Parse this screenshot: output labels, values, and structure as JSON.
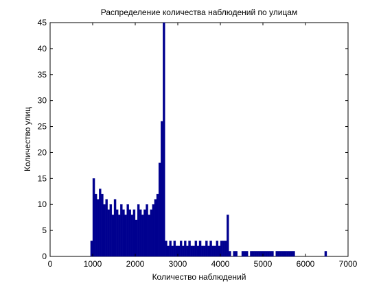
{
  "chart_data": {
    "type": "histogram",
    "title": "Распределение количества наблюдений по улицам",
    "xlabel": "Количество наблюдений",
    "ylabel": "Количество улиц",
    "color": "#00008f",
    "bins": [
      950,
      1000,
      1050,
      1100,
      1150,
      1200,
      1250,
      1300,
      1350,
      1400,
      1450,
      1500,
      1550,
      1600,
      1650,
      1700,
      1750,
      1800,
      1850,
      1900,
      1950,
      2000,
      2050,
      2100,
      2150,
      2200,
      2250,
      2300,
      2350,
      2400,
      2450,
      2500,
      2550,
      2600,
      2650,
      2700,
      2750,
      2800,
      2850,
      2900,
      2950,
      3000,
      3050,
      3100,
      3150,
      3200,
      3250,
      3300,
      3350,
      3400,
      3450,
      3500,
      3550,
      3600,
      3650,
      3700,
      3750,
      3800,
      3850,
      3900,
      3950,
      4000,
      4050,
      4100,
      4150,
      4200,
      4250,
      4300,
      4350,
      4400,
      4450,
      4500,
      4550,
      4600,
      4650,
      4700,
      4750,
      4800,
      4850,
      4900,
      4950,
      5000,
      5050,
      5100,
      5150,
      5200,
      5250,
      5300,
      5350,
      5400,
      5450,
      5500,
      5550,
      5600,
      5650,
      5700,
      5750,
      5800,
      5850,
      5900,
      5950,
      6000,
      6050,
      6100,
      6150,
      6200,
      6250,
      6300,
      6350,
      6400,
      6450,
      6500
    ],
    "values": [
      3,
      15,
      12,
      11,
      13,
      12,
      10,
      11,
      9,
      10,
      8,
      11,
      9,
      8,
      10,
      9,
      8,
      10,
      9,
      8,
      9,
      7,
      10,
      9,
      8,
      9,
      10,
      8,
      9,
      10,
      11,
      12,
      18,
      26,
      45,
      3,
      2,
      3,
      2,
      3,
      2,
      2,
      3,
      2,
      3,
      2,
      3,
      2,
      2,
      3,
      2,
      3,
      2,
      2,
      3,
      2,
      3,
      2,
      2,
      3,
      2,
      3,
      3,
      3,
      8,
      1,
      0,
      1,
      1,
      0,
      0,
      1,
      1,
      1,
      0,
      1,
      1,
      1,
      1,
      1,
      1,
      1,
      1,
      1,
      1,
      1,
      0,
      1,
      1,
      1,
      1,
      1,
      1,
      1,
      1,
      1,
      0,
      0,
      0,
      0,
      0,
      0,
      0,
      0,
      0,
      0,
      0,
      0,
      0,
      0,
      1
    ],
    "xlim": [
      0,
      7000
    ],
    "xticks": [
      0,
      1000,
      2000,
      3000,
      4000,
      5000,
      6000,
      7000
    ],
    "ylim": [
      0,
      45
    ],
    "yticks": [
      0,
      5,
      10,
      15,
      20,
      25,
      30,
      35,
      40,
      45
    ]
  }
}
